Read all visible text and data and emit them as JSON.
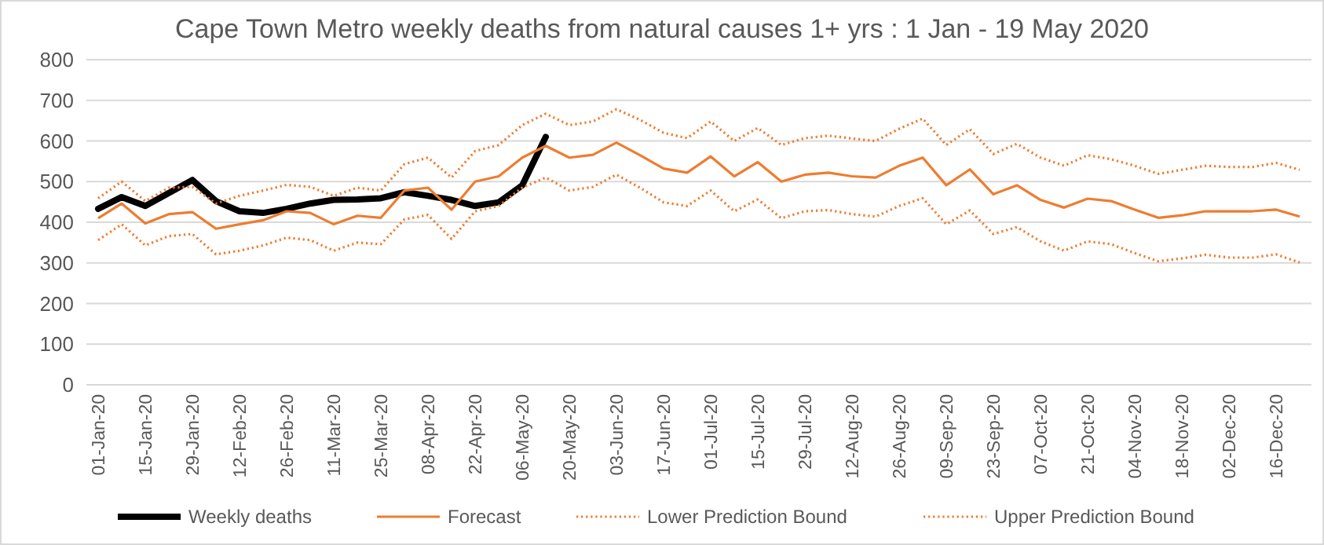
{
  "chart_data": {
    "type": "line",
    "title": "Cape Town Metro weekly deaths from natural causes 1+ yrs : 1 Jan - 19 May 2020",
    "categories": [
      "01-Jan-20",
      null,
      "15-Jan-20",
      null,
      "29-Jan-20",
      null,
      "12-Feb-20",
      null,
      "26-Feb-20",
      null,
      "11-Mar-20",
      null,
      "25-Mar-20",
      null,
      "08-Apr-20",
      null,
      "22-Apr-20",
      null,
      "06-May-20",
      null,
      "20-May-20",
      null,
      "03-Jun-20",
      null,
      "17-Jun-20",
      null,
      "01-Jul-20",
      null,
      "15-Jul-20",
      null,
      "29-Jul-20",
      null,
      "12-Aug-20",
      null,
      "26-Aug-20",
      null,
      "09-Sep-20",
      null,
      "23-Sep-20",
      null,
      "07-Oct-20",
      null,
      "21-Oct-20",
      null,
      "04-Nov-20",
      null,
      "18-Nov-20",
      null,
      "02-Dec-20",
      null,
      "16-Dec-20",
      null
    ],
    "ylim": [
      0,
      800
    ],
    "yticks": [
      0,
      100,
      200,
      300,
      400,
      500,
      600,
      700,
      800
    ],
    "grid": "y",
    "legend": "bottom",
    "marker": "none",
    "series": [
      {
        "name": "Weekly deaths",
        "color": "#000000",
        "line_style": "solid",
        "values": [
          433,
          462,
          440,
          472,
          504,
          452,
          427,
          423,
          433,
          446,
          455,
          456,
          459,
          474,
          465,
          455,
          440,
          449,
          491,
          610,
          null,
          null,
          null,
          null,
          null,
          null,
          null,
          null,
          null,
          null,
          null,
          null,
          null,
          null,
          null,
          null,
          null,
          null,
          null,
          null,
          null,
          null,
          null,
          null,
          null,
          null,
          null,
          null,
          null,
          null,
          null,
          null
        ]
      },
      {
        "name": "Forecast",
        "color": "#ed7d31",
        "line_style": "solid",
        "values": [
          410,
          446,
          397,
          420,
          425,
          384,
          395,
          405,
          427,
          423,
          395,
          416,
          411,
          478,
          485,
          431,
          500,
          513,
          559,
          588,
          559,
          566,
          596,
          565,
          532,
          522,
          562,
          513,
          548,
          500,
          517,
          522,
          513,
          510,
          539,
          559,
          491,
          530,
          469,
          491,
          455,
          436,
          458,
          452,
          431,
          411,
          417,
          427,
          427,
          427,
          431,
          414
        ]
      },
      {
        "name": "Lower Prediction Bound",
        "color": "#ed7d31",
        "line_style": "dotted",
        "values": [
          356,
          395,
          343,
          366,
          371,
          321,
          330,
          343,
          362,
          356,
          330,
          350,
          346,
          407,
          418,
          359,
          427,
          440,
          485,
          510,
          478,
          487,
          517,
          485,
          449,
          440,
          478,
          427,
          456,
          410,
          427,
          430,
          420,
          414,
          440,
          459,
          395,
          429,
          371,
          388,
          353,
          330,
          353,
          346,
          324,
          304,
          311,
          320,
          313,
          313,
          321,
          301
        ]
      },
      {
        "name": "Upper Prediction Bound",
        "color": "#ed7d31",
        "line_style": "dotted",
        "values": [
          459,
          500,
          452,
          485,
          487,
          446,
          465,
          478,
          492,
          487,
          465,
          485,
          478,
          543,
          559,
          510,
          575,
          590,
          639,
          667,
          639,
          648,
          678,
          652,
          620,
          607,
          648,
          600,
          632,
          590,
          607,
          613,
          606,
          600,
          630,
          655,
          590,
          629,
          568,
          593,
          559,
          539,
          565,
          555,
          539,
          519,
          529,
          539,
          536,
          536,
          546,
          529
        ]
      }
    ]
  }
}
